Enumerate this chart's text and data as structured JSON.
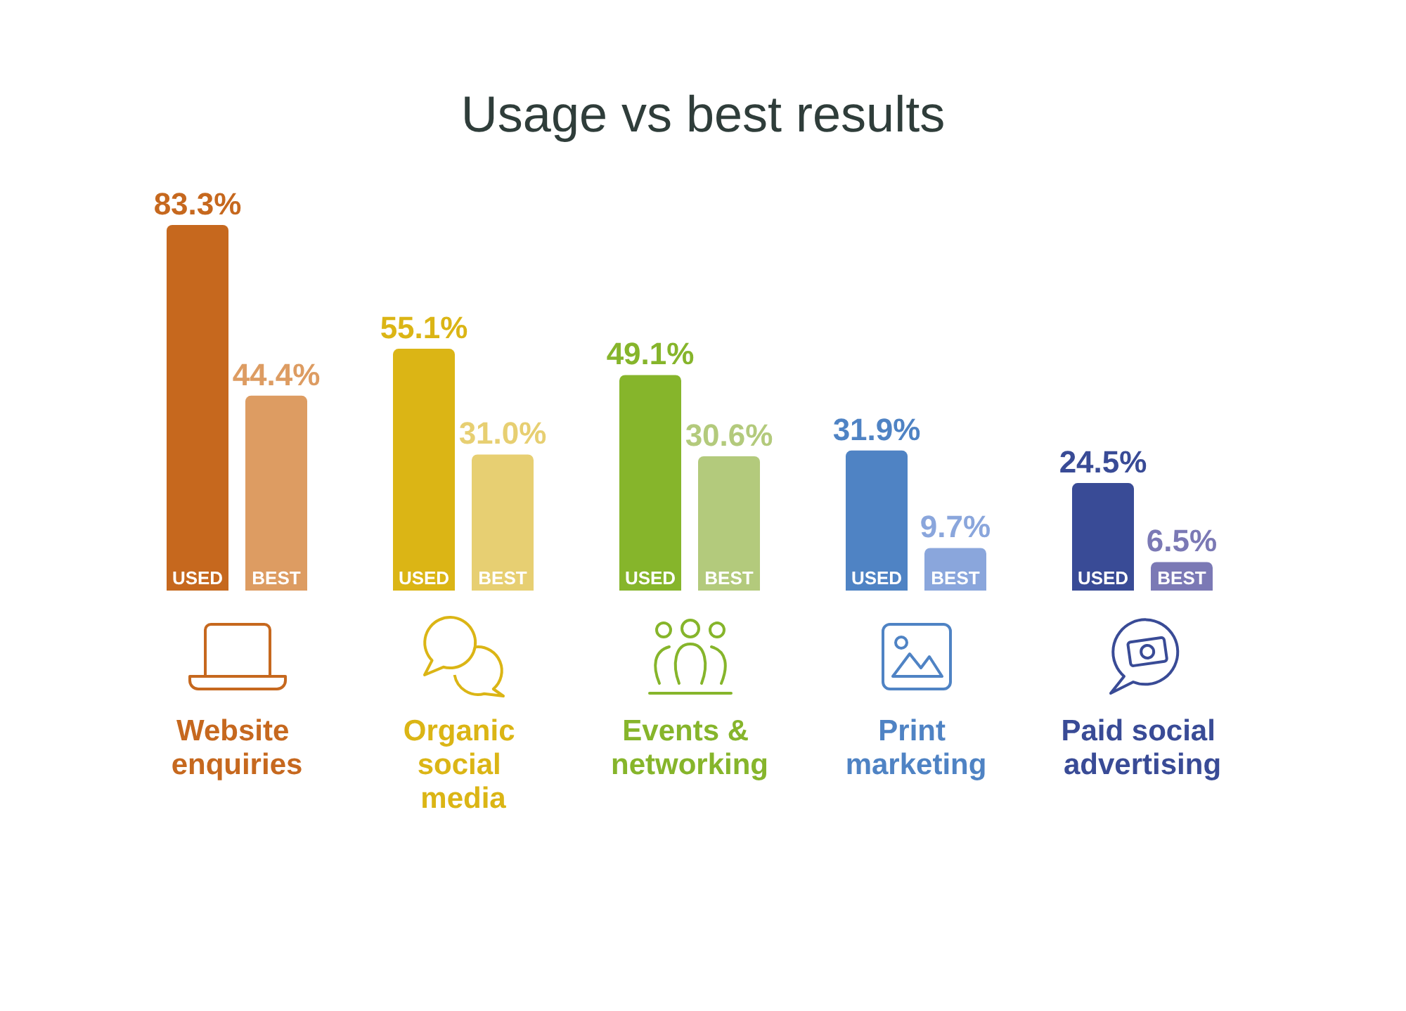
{
  "chart_data": {
    "type": "bar",
    "title": "Usage vs best results",
    "categories": [
      "Website enquiries",
      "Organic social media",
      "Events & networking",
      "Print marketing",
      "Paid social advertising"
    ],
    "series": [
      {
        "name": "USED",
        "colors": [
          "#c6681e",
          "#dbb515",
          "#86b52b",
          "#4f83c4",
          "#394b96"
        ],
        "values": [
          83.3,
          55.1,
          49.1,
          31.9,
          24.5
        ],
        "value_labels": [
          "83.3%",
          "55.1%",
          "49.1%",
          "31.9%",
          "24.5%"
        ]
      },
      {
        "name": "BEST",
        "colors": [
          "#dd9c62",
          "#e7cf72",
          "#b3ca7c",
          "#8aa6dc",
          "#7b79b5"
        ],
        "values": [
          44.4,
          31.0,
          30.6,
          9.7,
          6.5
        ],
        "value_labels": [
          "44.4%",
          "31.0%",
          "30.6%",
          "9.7%",
          "6.5%"
        ]
      }
    ]
  }
}
